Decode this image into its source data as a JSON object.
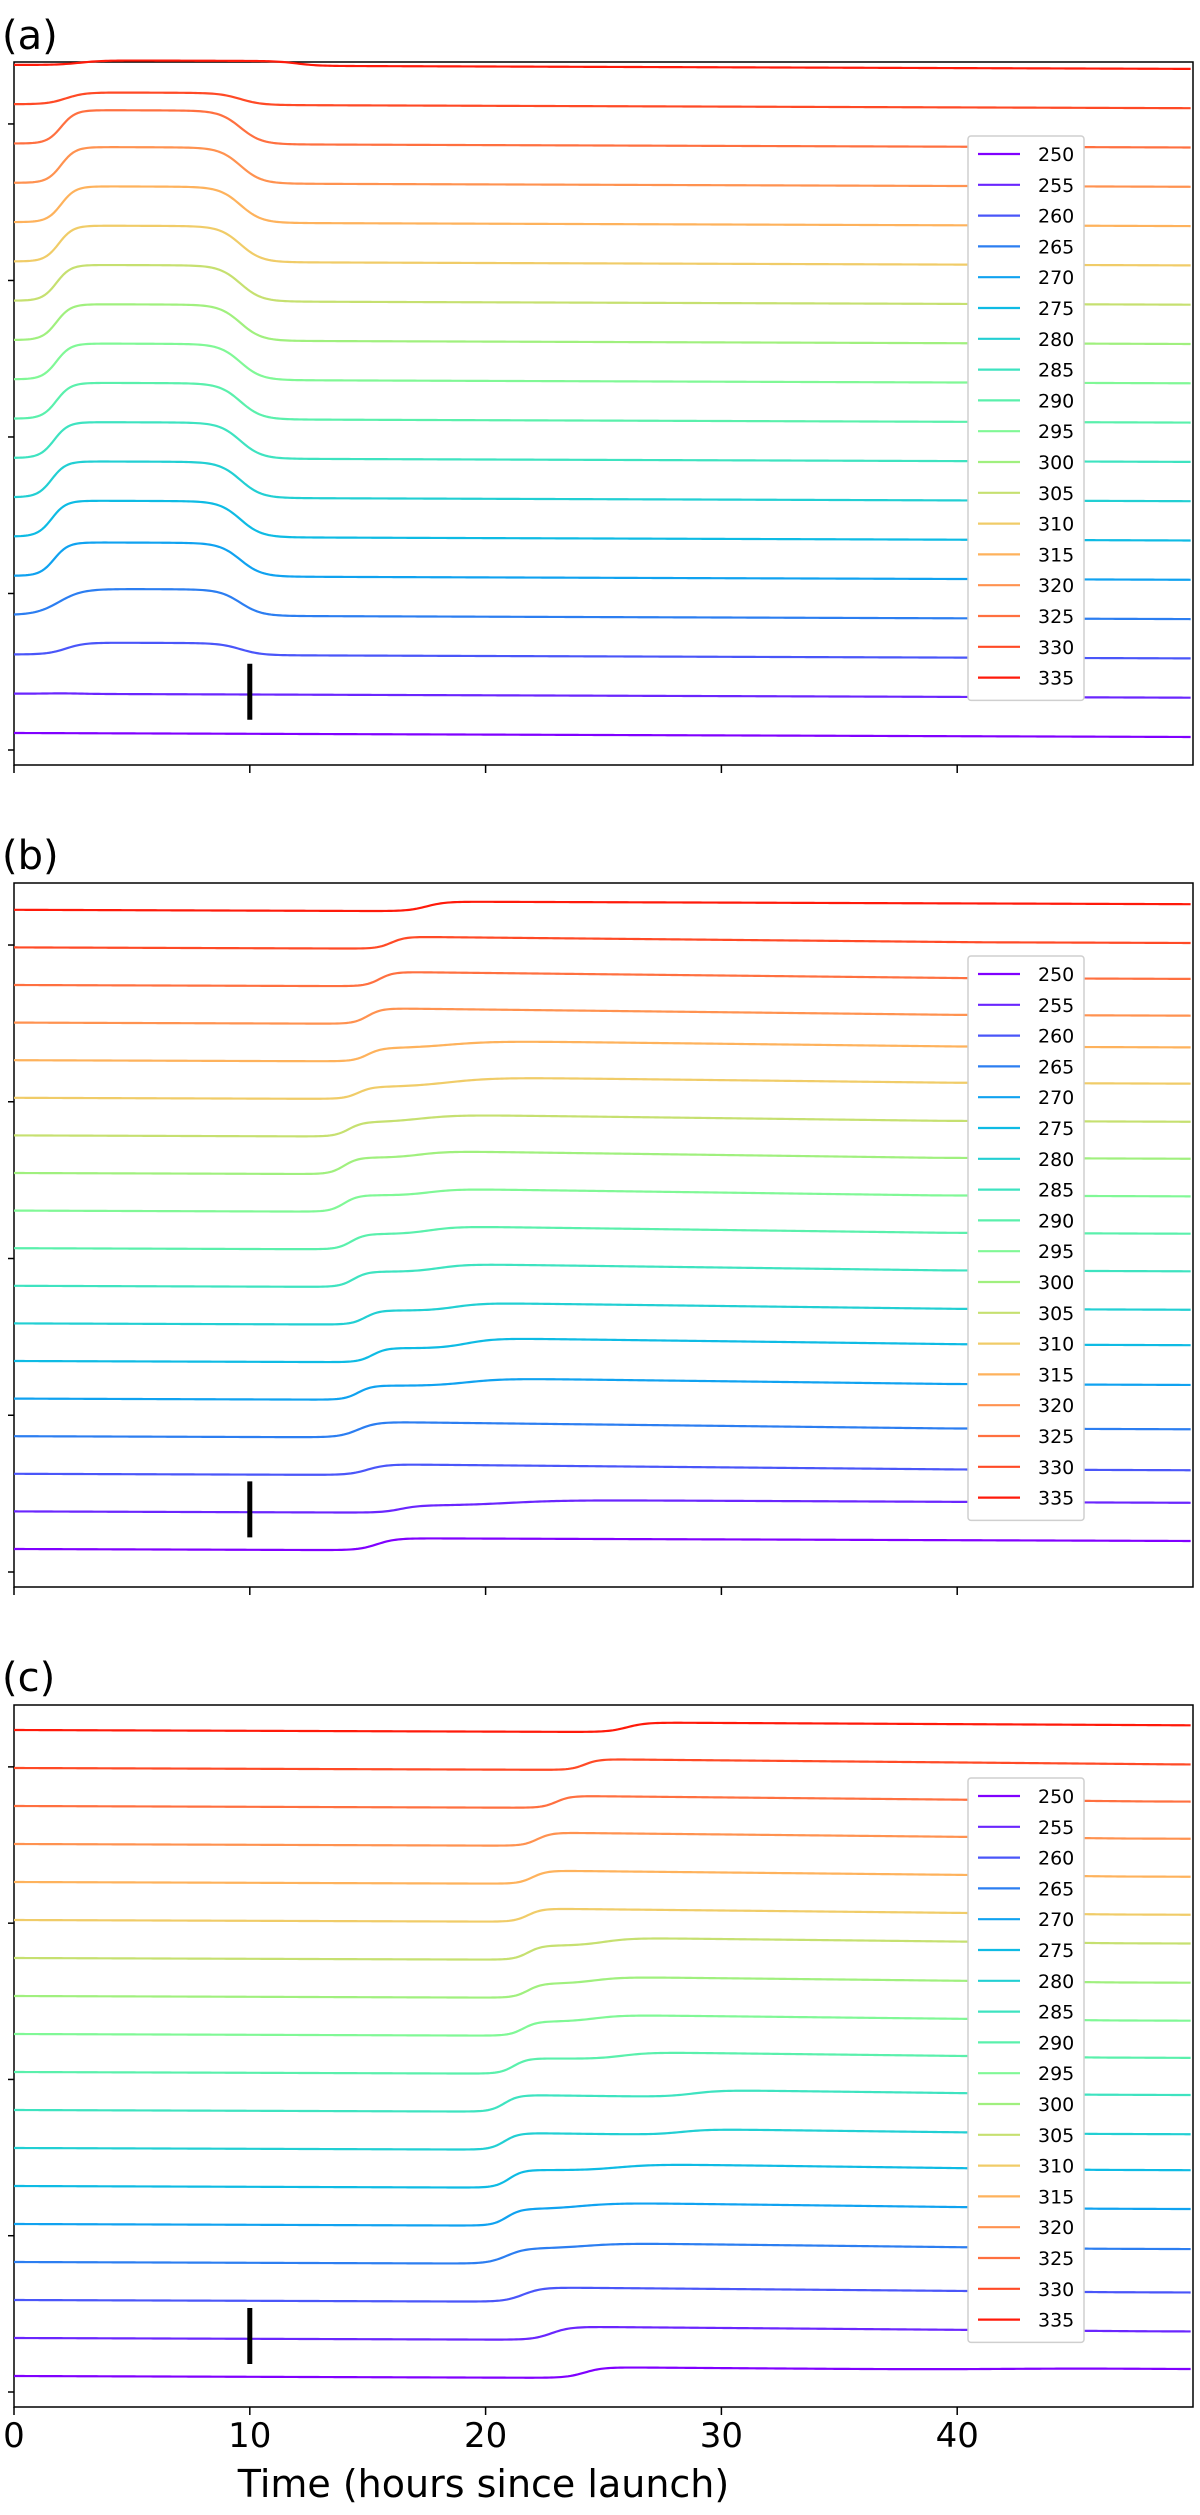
{
  "chart_data": [
    {
      "type": "line",
      "panel_label": "(a)",
      "x_range": [
        0,
        50
      ],
      "x_ticks": [
        0,
        10,
        20,
        30,
        40
      ],
      "show_x_tick_labels": false,
      "grid": false,
      "legend_position": "right",
      "offsets": "vertical (series stacked, 250 at bottom)",
      "marker": {
        "x": 10,
        "series": "255"
      },
      "series": [
        {
          "name": "250",
          "color": "#8000ff",
          "bumps": [
            [
              3.5,
              0.8,
              0.08,
              0.5
            ]
          ]
        },
        {
          "name": "255",
          "color": "#6a26fe",
          "bumps": [
            [
              2.6,
              2.0,
              0.15,
              0.6
            ]
          ]
        },
        {
          "name": "260",
          "color": "#4a56f9",
          "bumps": [
            [
              2.2,
              9.6,
              0.5,
              0.4
            ]
          ]
        },
        {
          "name": "265",
          "color": "#2c7ef1",
          "bumps": [
            [
              1.9,
              9.6,
              1.1,
              0.5
            ]
          ]
        },
        {
          "name": "270",
          "color": "#10a2f0",
          "bumps": [
            [
              1.7,
              9.6,
              1.4,
              0.3
            ]
          ]
        },
        {
          "name": "275",
          "color": "#0ebbe4",
          "bumps": [
            [
              1.6,
              9.6,
              1.5,
              0.3
            ]
          ]
        },
        {
          "name": "280",
          "color": "#22cfd3",
          "bumps": [
            [
              1.6,
              9.6,
              1.5,
              0.3
            ]
          ]
        },
        {
          "name": "285",
          "color": "#3ee3c0",
          "bumps": [
            [
              1.7,
              9.6,
              1.5,
              0.3
            ]
          ]
        },
        {
          "name": "290",
          "color": "#5af0ac",
          "bumps": [
            [
              1.8,
              9.6,
              1.5,
              0.3
            ]
          ]
        },
        {
          "name": "295",
          "color": "#80f896",
          "bumps": [
            [
              1.8,
              9.6,
              1.5,
              0.3
            ]
          ]
        },
        {
          "name": "300",
          "color": "#a0f07e",
          "bumps": [
            [
              1.8,
              9.6,
              1.5,
              0.3
            ]
          ]
        },
        {
          "name": "305",
          "color": "#c6e070",
          "bumps": [
            [
              1.8,
              9.6,
              1.5,
              0.3
            ]
          ]
        },
        {
          "name": "310",
          "color": "#f0cc68",
          "bumps": [
            [
              1.9,
              9.6,
              1.5,
              0.3
            ]
          ]
        },
        {
          "name": "315",
          "color": "#feb25c",
          "bumps": [
            [
              2.0,
              9.6,
              1.5,
              0.3
            ]
          ]
        },
        {
          "name": "320",
          "color": "#ff9250",
          "bumps": [
            [
              2.0,
              9.6,
              1.5,
              0.3
            ]
          ]
        },
        {
          "name": "325",
          "color": "#ff7040",
          "bumps": [
            [
              2.0,
              9.6,
              1.4,
              0.3
            ]
          ]
        },
        {
          "name": "330",
          "color": "#ff4a26",
          "bumps": [
            [
              2.2,
              9.6,
              0.5,
              0.4
            ]
          ]
        },
        {
          "name": "335",
          "color": "#ff1a0a",
          "bumps": [
            [
              2.8,
              12.0,
              0.2,
              0.5
            ]
          ]
        }
      ]
    },
    {
      "type": "line",
      "panel_label": "(b)",
      "x_range": [
        0,
        50
      ],
      "x_ticks": [
        0,
        10,
        20,
        30,
        40
      ],
      "show_x_tick_labels": false,
      "grid": false,
      "legend_position": "right",
      "offsets": "vertical (series stacked, 250 at bottom)",
      "marker": {
        "x": 10,
        "series": "255"
      },
      "series": [
        {
          "name": "250",
          "color": "#8000ff",
          "bumps": [
            [
              15.4,
              50,
              0.5,
              0.4,
              0.0
            ]
          ]
        },
        {
          "name": "255",
          "color": "#6a26fe",
          "bumps": [
            [
              16.4,
              50,
              0.3,
              0.4,
              0.0
            ],
            [
              21.0,
              50,
              0.25,
              1.2,
              0.1
            ]
          ]
        },
        {
          "name": "260",
          "color": "#4a56f9",
          "bumps": [
            [
              15.0,
              50,
              0.45,
              0.4,
              0.3
            ]
          ]
        },
        {
          "name": "265",
          "color": "#2c7ef1",
          "bumps": [
            [
              14.6,
              50,
              0.65,
              0.4,
              0.3
            ]
          ]
        },
        {
          "name": "270",
          "color": "#10a2f0",
          "bumps": [
            [
              14.6,
              50,
              0.6,
              0.3,
              0.3
            ],
            [
              19.2,
              50,
              0.35,
              0.8,
              0.1
            ]
          ]
        },
        {
          "name": "275",
          "color": "#0ebbe4",
          "bumps": [
            [
              15.2,
              50,
              0.6,
              0.3,
              0.3
            ],
            [
              19.2,
              50,
              0.45,
              0.6,
              0.1
            ]
          ]
        },
        {
          "name": "280",
          "color": "#22cfd3",
          "bumps": [
            [
              14.9,
              50,
              0.6,
              0.3,
              0.3
            ],
            [
              18.7,
              50,
              0.35,
              0.6,
              0.1
            ]
          ]
        },
        {
          "name": "285",
          "color": "#3ee3c0",
          "bumps": [
            [
              14.4,
              50,
              0.65,
              0.3,
              0.3
            ],
            [
              18.0,
              50,
              0.35,
              0.6,
              0.1
            ]
          ]
        },
        {
          "name": "290",
          "color": "#5af0ac",
          "bumps": [
            [
              14.3,
              50,
              0.65,
              0.3,
              0.3
            ],
            [
              17.6,
              50,
              0.35,
              0.6,
              0.1
            ]
          ]
        },
        {
          "name": "295",
          "color": "#80f896",
          "bumps": [
            [
              14.0,
              50,
              0.7,
              0.3,
              0.3
            ],
            [
              17.6,
              50,
              0.3,
              0.6,
              0.1
            ]
          ]
        },
        {
          "name": "300",
          "color": "#a0f07e",
          "bumps": [
            [
              14.0,
              50,
              0.7,
              0.3,
              0.3
            ],
            [
              17.2,
              50,
              0.3,
              0.6,
              0.1
            ]
          ]
        },
        {
          "name": "305",
          "color": "#c6e070",
          "bumps": [
            [
              14.2,
              50,
              0.6,
              0.3,
              0.3
            ],
            [
              17.2,
              50,
              0.35,
              0.8,
              0.1
            ]
          ]
        },
        {
          "name": "310",
          "color": "#f0cc68",
          "bumps": [
            [
              14.6,
              50,
              0.5,
              0.3,
              0.3
            ],
            [
              18.4,
              50,
              0.45,
              1.0,
              0.1
            ]
          ]
        },
        {
          "name": "315",
          "color": "#feb25c",
          "bumps": [
            [
              15.0,
              50,
              0.55,
              0.3,
              0.3
            ],
            [
              18.4,
              50,
              0.35,
              1.0,
              0.1
            ]
          ]
        },
        {
          "name": "320",
          "color": "#ff9250",
          "bumps": [
            [
              15.0,
              50,
              0.65,
              0.3,
              0.3
            ]
          ]
        },
        {
          "name": "325",
          "color": "#ff7040",
          "bumps": [
            [
              15.5,
              50,
              0.6,
              0.3,
              0.3
            ]
          ]
        },
        {
          "name": "330",
          "color": "#ff4a26",
          "bumps": [
            [
              16.0,
              50,
              0.5,
              0.3,
              0.3
            ]
          ]
        },
        {
          "name": "335",
          "color": "#ff1a0a",
          "bumps": [
            [
              17.5,
              50,
              0.4,
              0.4,
              0.0
            ]
          ]
        }
      ]
    },
    {
      "type": "line",
      "panel_label": "(c)",
      "x_range": [
        0,
        50
      ],
      "x_ticks": [
        0,
        10,
        20,
        30,
        40
      ],
      "x_tick_labels": [
        "0",
        "10",
        "20",
        "30",
        "40"
      ],
      "show_x_tick_labels": true,
      "xlabel": "Time (hours since launch)",
      "grid": false,
      "legend_position": "right",
      "offsets": "vertical (series stacked, 250 at bottom)",
      "marker": {
        "x": 10,
        "series": "255"
      },
      "series": [
        {
          "name": "250",
          "color": "#8000ff",
          "bumps": [
            [
              24.2,
              50,
              0.45,
              0.4,
              0.2
            ],
            [
              42.0,
              50,
              0.1,
              2.0,
              0.0
            ]
          ]
        },
        {
          "name": "255",
          "color": "#6a26fe",
          "bumps": [
            [
              22.8,
              50,
              0.55,
              0.4,
              0.2
            ]
          ]
        },
        {
          "name": "260",
          "color": "#4a56f9",
          "bumps": [
            [
              21.6,
              50,
              0.6,
              0.4,
              0.2
            ]
          ]
        },
        {
          "name": "265",
          "color": "#2c7ef1",
          "bumps": [
            [
              20.9,
              50,
              0.65,
              0.4,
              0.3
            ],
            [
              24.2,
              50,
              0.25,
              0.8,
              0.0
            ]
          ]
        },
        {
          "name": "270",
          "color": "#10a2f0",
          "bumps": [
            [
              20.9,
              50,
              0.7,
              0.3,
              0.3
            ],
            [
              24.0,
              50,
              0.3,
              0.8,
              0.0
            ]
          ]
        },
        {
          "name": "275",
          "color": "#0ebbe4",
          "bumps": [
            [
              21.0,
              50,
              0.75,
              0.3,
              0.3
            ],
            [
              25.6,
              50,
              0.3,
              0.8,
              0.0
            ]
          ]
        },
        {
          "name": "280",
          "color": "#22cfd3",
          "bumps": [
            [
              20.8,
              50,
              0.7,
              0.3,
              0.3
            ],
            [
              28.3,
              50,
              0.25,
              0.6,
              0.0
            ]
          ]
        },
        {
          "name": "285",
          "color": "#3ee3c0",
          "bumps": [
            [
              20.8,
              50,
              0.7,
              0.3,
              0.3
            ],
            [
              28.8,
              50,
              0.3,
              0.6,
              0.0
            ]
          ]
        },
        {
          "name": "290",
          "color": "#5af0ac",
          "bumps": [
            [
              21.2,
              50,
              0.65,
              0.3,
              0.3
            ],
            [
              25.8,
              50,
              0.3,
              0.6,
              0.0
            ]
          ]
        },
        {
          "name": "295",
          "color": "#80f896",
          "bumps": [
            [
              21.6,
              50,
              0.6,
              0.3,
              0.3
            ],
            [
              24.6,
              50,
              0.3,
              0.6,
              0.0
            ]
          ]
        },
        {
          "name": "300",
          "color": "#a0f07e",
          "bumps": [
            [
              21.8,
              50,
              0.6,
              0.3,
              0.3
            ],
            [
              24.6,
              50,
              0.3,
              0.6,
              0.0
            ]
          ]
        },
        {
          "name": "305",
          "color": "#c6e070",
          "bumps": [
            [
              21.8,
              50,
              0.6,
              0.3,
              0.3
            ],
            [
              25.0,
              50,
              0.35,
              0.6,
              0.0
            ]
          ]
        },
        {
          "name": "310",
          "color": "#f0cc68",
          "bumps": [
            [
              21.8,
              50,
              0.55,
              0.3,
              0.3
            ]
          ]
        },
        {
          "name": "315",
          "color": "#feb25c",
          "bumps": [
            [
              22.0,
              50,
              0.55,
              0.3,
              0.3
            ]
          ]
        },
        {
          "name": "320",
          "color": "#ff9250",
          "bumps": [
            [
              22.2,
              50,
              0.55,
              0.3,
              0.3
            ]
          ]
        },
        {
          "name": "325",
          "color": "#ff7040",
          "bumps": [
            [
              23.0,
              50,
              0.5,
              0.3,
              0.3
            ]
          ]
        },
        {
          "name": "330",
          "color": "#ff4a26",
          "bumps": [
            [
              24.2,
              50,
              0.45,
              0.3,
              0.3
            ]
          ]
        },
        {
          "name": "335",
          "color": "#ff1a0a",
          "bumps": [
            [
              26.0,
              50,
              0.4,
              0.4,
              0.1
            ]
          ]
        }
      ]
    }
  ]
}
